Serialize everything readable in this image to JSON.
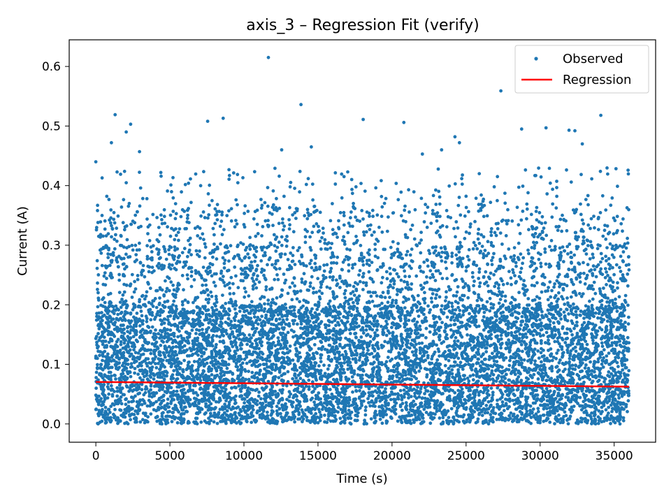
{
  "chart_data": {
    "type": "scatter",
    "title": "axis_3 – Regression Fit (verify)",
    "xlabel": "Time (s)",
    "ylabel": "Current (A)",
    "xlim": [
      -1800,
      37800
    ],
    "ylim": [
      -0.0307,
      0.6447
    ],
    "xticks": [
      0,
      5000,
      10000,
      15000,
      20000,
      25000,
      30000,
      35000
    ],
    "xtick_labels": [
      "0",
      "5000",
      "10000",
      "15000",
      "20000",
      "25000",
      "30000",
      "35000"
    ],
    "yticks": [
      0.0,
      0.1,
      0.2,
      0.3,
      0.4,
      0.5,
      0.6
    ],
    "ytick_labels": [
      "0.0",
      "0.1",
      "0.2",
      "0.3",
      "0.4",
      "0.5",
      "0.6"
    ],
    "grid": false,
    "legend_position": "top-right",
    "series": [
      {
        "name": "Observed",
        "kind": "scatter",
        "color": "#1f77b4",
        "x_range": [
          0,
          36000
        ],
        "y_range": [
          0.0,
          0.615
        ],
        "dense_band_y": [
          0.0,
          0.2
        ],
        "outliers": [
          {
            "x": 0,
            "y": 0.44
          },
          {
            "x": 1050,
            "y": 0.472
          },
          {
            "x": 1300,
            "y": 0.519
          },
          {
            "x": 2050,
            "y": 0.49
          },
          {
            "x": 2350,
            "y": 0.503
          },
          {
            "x": 2950,
            "y": 0.457
          },
          {
            "x": 7550,
            "y": 0.508
          },
          {
            "x": 8600,
            "y": 0.513
          },
          {
            "x": 11650,
            "y": 0.615
          },
          {
            "x": 12550,
            "y": 0.46
          },
          {
            "x": 13850,
            "y": 0.536
          },
          {
            "x": 14550,
            "y": 0.465
          },
          {
            "x": 18050,
            "y": 0.511
          },
          {
            "x": 20800,
            "y": 0.506
          },
          {
            "x": 22050,
            "y": 0.453
          },
          {
            "x": 23350,
            "y": 0.46
          },
          {
            "x": 24250,
            "y": 0.482
          },
          {
            "x": 24550,
            "y": 0.472
          },
          {
            "x": 27350,
            "y": 0.559
          },
          {
            "x": 28750,
            "y": 0.495
          },
          {
            "x": 30400,
            "y": 0.497
          },
          {
            "x": 31950,
            "y": 0.493
          },
          {
            "x": 32350,
            "y": 0.492
          },
          {
            "x": 32850,
            "y": 0.47
          },
          {
            "x": 34100,
            "y": 0.518
          }
        ]
      },
      {
        "name": "Regression",
        "kind": "line",
        "color": "#ff0000",
        "x": [
          0,
          36000
        ],
        "y": [
          0.0705,
          0.0625
        ]
      }
    ]
  }
}
